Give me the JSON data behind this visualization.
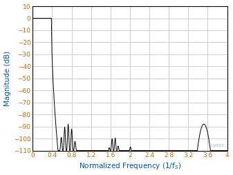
{
  "title": "",
  "xlabel": "Normalized Frequency (1/f$_S$)",
  "ylabel": "Magnitude (dB)",
  "xlim": [
    0,
    4
  ],
  "ylim": [
    -110,
    10
  ],
  "xticks": [
    0,
    0.4,
    0.8,
    1.2,
    1.6,
    2.0,
    2.4,
    2.8,
    3.2,
    3.6,
    4.0
  ],
  "yticks": [
    10,
    0,
    -10,
    -20,
    -30,
    -40,
    -50,
    -60,
    -70,
    -80,
    -90,
    -100,
    -110
  ],
  "line_color": "#000000",
  "background_color": "#ffffff",
  "grid_color": "#bbbbbb",
  "tick_label_color": "#cc6600",
  "axis_label_color": "#0055aa",
  "watermark": "LXXX2",
  "figsize": [
    3.37,
    2.54
  ],
  "dpi": 100
}
